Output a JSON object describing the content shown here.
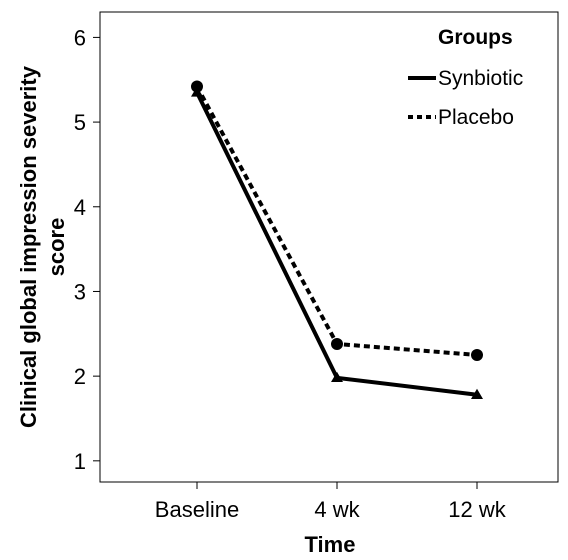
{
  "chart_data": {
    "type": "line",
    "xlabel": "Time",
    "ylabel": "Clinical global impression severity score",
    "categories": [
      "Baseline",
      "4 wk",
      "12 wk"
    ],
    "ylim": [
      0.75,
      6.3
    ],
    "yticks": [
      1,
      2,
      3,
      4,
      5,
      6
    ],
    "grid": false,
    "legend": {
      "title": "Groups",
      "position": "top-right"
    },
    "series": [
      {
        "name": "Synbiotic",
        "values": [
          5.35,
          1.98,
          1.78
        ],
        "line_style": "solid",
        "marker": "triangle",
        "color": "#000000"
      },
      {
        "name": "Placebo",
        "values": [
          5.42,
          2.38,
          2.25
        ],
        "line_style": "dotted",
        "marker": "circle",
        "color": "#000000"
      }
    ]
  }
}
